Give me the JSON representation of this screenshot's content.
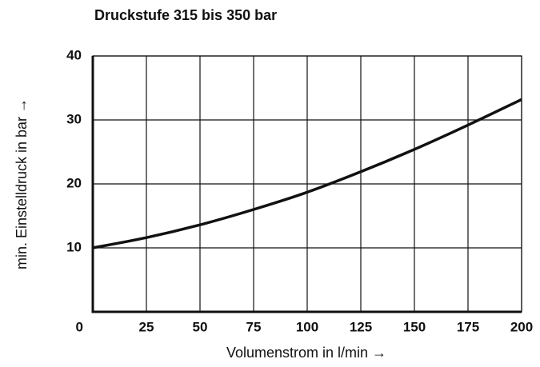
{
  "chart_data": {
    "type": "line",
    "title": "Druckstufe 315 bis 350 bar",
    "x_label": "Volumenstrom in l/min →",
    "y_label": "min. Einstelldruck in bar →",
    "x": [
      0,
      25,
      50,
      75,
      100,
      125,
      150,
      175,
      200
    ],
    "series": [
      {
        "color": "#111111",
        "values": [
          10,
          11.6,
          13.6,
          16,
          18.7,
          21.9,
          25.4,
          29.2,
          33.2
        ]
      }
    ],
    "xlim": [
      0,
      200
    ],
    "ylim": [
      0,
      40
    ],
    "xticks": [
      0,
      25,
      50,
      75,
      100,
      125,
      150,
      175,
      200
    ],
    "yticks": [
      10,
      20,
      30,
      40
    ],
    "grid": true
  }
}
